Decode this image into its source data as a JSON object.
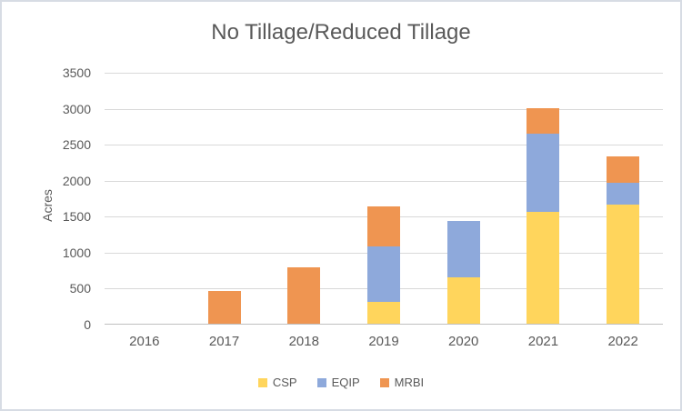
{
  "chart_data": {
    "type": "bar",
    "stacked": true,
    "title": "No Tillage/Reduced Tillage",
    "xlabel": "",
    "ylabel": "Acres",
    "categories": [
      "2016",
      "2017",
      "2018",
      "2019",
      "2020",
      "2021",
      "2022"
    ],
    "series": [
      {
        "name": "CSP",
        "color": "#FFD55C",
        "values": [
          0,
          0,
          0,
          300,
          640,
          1550,
          1660
        ]
      },
      {
        "name": "EQIP",
        "color": "#8EA9DB",
        "values": [
          0,
          0,
          0,
          780,
          780,
          1090,
          300
        ]
      },
      {
        "name": "MRBI",
        "color": "#EF9551",
        "values": [
          0,
          460,
          780,
          550,
          0,
          360,
          370
        ]
      }
    ],
    "totals": [
      0,
      460,
      780,
      1630,
      1420,
      3000,
      2330
    ],
    "ylim": [
      0,
      3500
    ],
    "yticks": [
      0,
      500,
      1000,
      1500,
      2000,
      2500,
      3000,
      3500
    ],
    "grid": true,
    "legend_position": "bottom"
  },
  "style": {
    "gridline_color": "#d9d9d9",
    "axis_line_color": "#bfbfbf",
    "text_color": "#595959",
    "frame_border_color": "#d7dce4",
    "background": "#ffffff"
  }
}
